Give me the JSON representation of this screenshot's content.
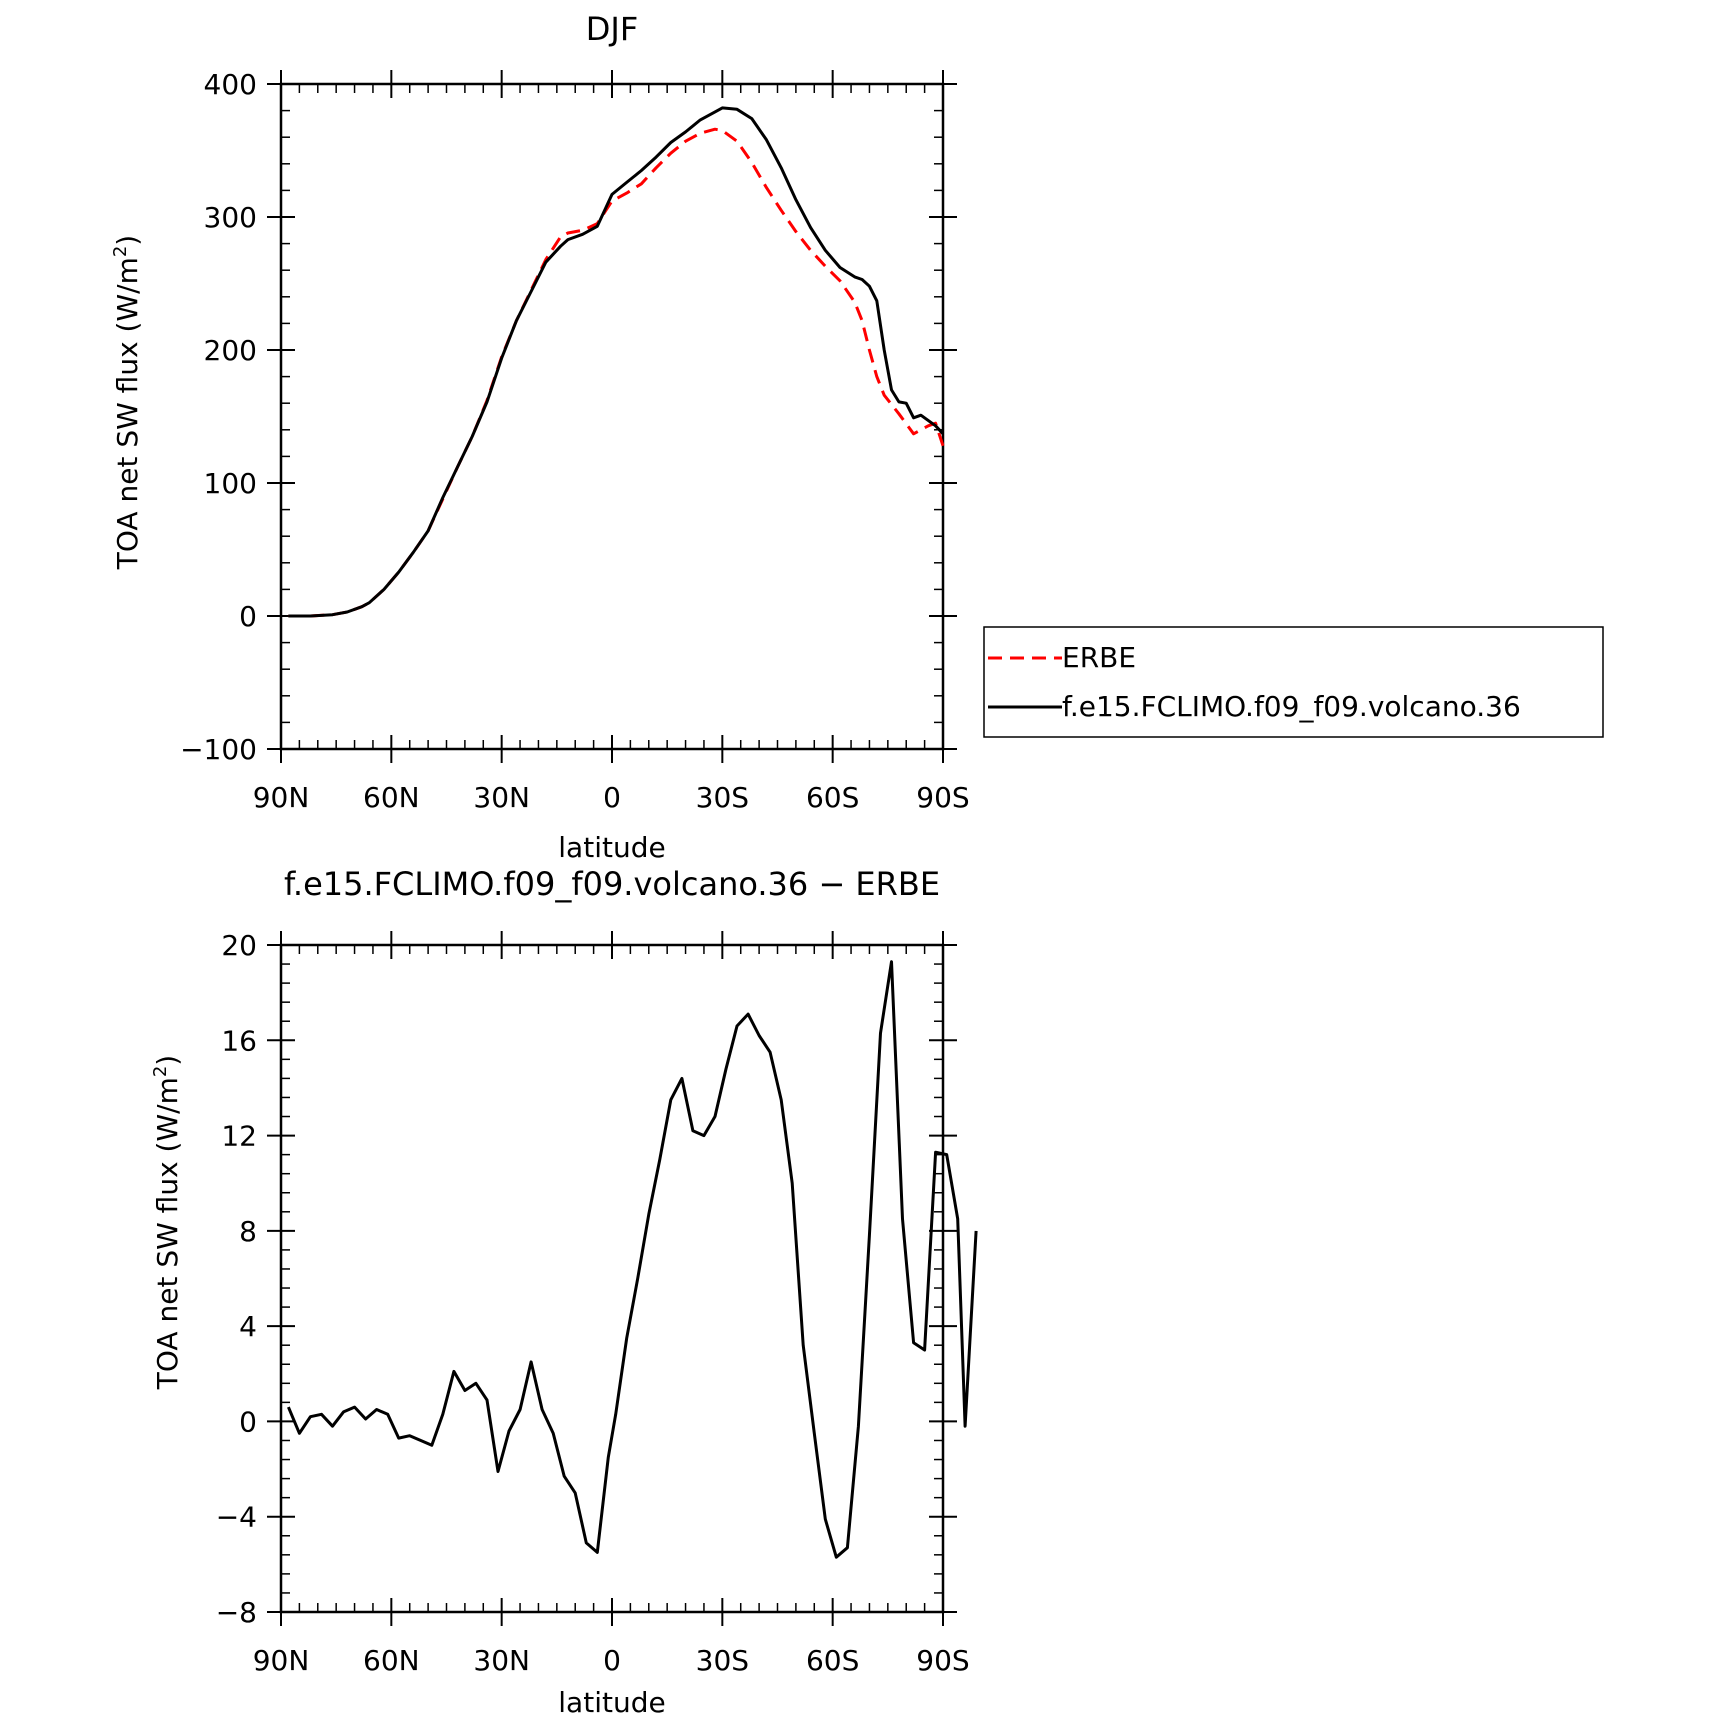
{
  "chart_data": [
    {
      "type": "line",
      "title": "DJF",
      "xlabel": "latitude",
      "ylabel": "TOA net SW flux (W/m²)",
      "ylabel_parts": {
        "main": "TOA net SW flux (W/m",
        "sup": "2",
        "end": ")"
      },
      "xlim": [
        90,
        -90
      ],
      "ylim": [
        -100,
        400
      ],
      "x_ticks": [
        {
          "value": 90,
          "label": "90N"
        },
        {
          "value": 60,
          "label": "60N"
        },
        {
          "value": 30,
          "label": "30N"
        },
        {
          "value": 0,
          "label": "0"
        },
        {
          "value": -30,
          "label": "30S"
        },
        {
          "value": -60,
          "label": "60S"
        },
        {
          "value": -90,
          "label": "90S"
        }
      ],
      "y_ticks": [
        {
          "value": -100,
          "label": "−100"
        },
        {
          "value": 0,
          "label": "0"
        },
        {
          "value": 100,
          "label": "100"
        },
        {
          "value": 200,
          "label": "200"
        },
        {
          "value": 300,
          "label": "300"
        },
        {
          "value": 400,
          "label": "400"
        }
      ],
      "legend_position": "right",
      "series": [
        {
          "name": "ERBE",
          "color": "#ff0000",
          "dash": "dashed",
          "points": [
            [
              88,
              0
            ],
            [
              82,
              0
            ],
            [
              76,
              1
            ],
            [
              72,
              3
            ],
            [
              68,
              7
            ],
            [
              66,
              10
            ],
            [
              62,
              20
            ],
            [
              58,
              33
            ],
            [
              54,
              48
            ],
            [
              50,
              64
            ],
            [
              46,
              88
            ],
            [
              42,
              112
            ],
            [
              38,
              135
            ],
            [
              34,
              162
            ],
            [
              30,
              195
            ],
            [
              26,
              222
            ],
            [
              22,
              245
            ],
            [
              18,
              268
            ],
            [
              14,
              285
            ],
            [
              12,
              288
            ],
            [
              8,
              290
            ],
            [
              4,
              295
            ],
            [
              0,
              312
            ],
            [
              -4,
              318
            ],
            [
              -8,
              325
            ],
            [
              -12,
              337
            ],
            [
              -16,
              348
            ],
            [
              -20,
              357
            ],
            [
              -24,
              363
            ],
            [
              -28,
              366
            ],
            [
              -30,
              365
            ],
            [
              -34,
              357
            ],
            [
              -38,
              341
            ],
            [
              -42,
              322
            ],
            [
              -46,
              305
            ],
            [
              -50,
              289
            ],
            [
              -54,
              275
            ],
            [
              -58,
              263
            ],
            [
              -62,
              252
            ],
            [
              -66,
              236
            ],
            [
              -68,
              222
            ],
            [
              -70,
              200
            ],
            [
              -72,
              180
            ],
            [
              -74,
              166
            ],
            [
              -78,
              152
            ],
            [
              -82,
              137
            ],
            [
              -86,
              143
            ],
            [
              -88,
              145
            ],
            [
              -90,
              128
            ]
          ]
        },
        {
          "name": "f.e15.FCLIMO.f09_f09.volcano.36",
          "color": "#000000",
          "dash": "solid",
          "points": [
            [
              88,
              0
            ],
            [
              82,
              0
            ],
            [
              76,
              1
            ],
            [
              72,
              3
            ],
            [
              68,
              7
            ],
            [
              66,
              10
            ],
            [
              62,
              20
            ],
            [
              58,
              33
            ],
            [
              54,
              48
            ],
            [
              50,
              64
            ],
            [
              46,
              89
            ],
            [
              42,
              112
            ],
            [
              38,
              135
            ],
            [
              34,
              161
            ],
            [
              30,
              194
            ],
            [
              26,
              222
            ],
            [
              22,
              244
            ],
            [
              18,
              266
            ],
            [
              14,
              278
            ],
            [
              12,
              283
            ],
            [
              8,
              287
            ],
            [
              4,
              293
            ],
            [
              0,
              317
            ],
            [
              -4,
              326
            ],
            [
              -8,
              335
            ],
            [
              -12,
              345
            ],
            [
              -16,
              356
            ],
            [
              -20,
              364
            ],
            [
              -24,
              373
            ],
            [
              -28,
              379
            ],
            [
              -30,
              382
            ],
            [
              -34,
              381
            ],
            [
              -38,
              374
            ],
            [
              -42,
              358
            ],
            [
              -46,
              337
            ],
            [
              -50,
              313
            ],
            [
              -54,
              292
            ],
            [
              -58,
              275
            ],
            [
              -62,
              262
            ],
            [
              -66,
              255
            ],
            [
              -68,
              253
            ],
            [
              -70,
              248
            ],
            [
              -72,
              237
            ],
            [
              -74,
              200
            ],
            [
              -76,
              170
            ],
            [
              -78,
              161
            ],
            [
              -80,
              160
            ],
            [
              -82,
              149
            ],
            [
              -84,
              151
            ],
            [
              -88,
              143
            ],
            [
              -90,
              137
            ]
          ]
        }
      ]
    },
    {
      "type": "line",
      "title": "f.e15.FCLIMO.f09_f09.volcano.36 − ERBE",
      "xlabel": "latitude",
      "ylabel": "TOA net SW flux (W/m²)",
      "ylabel_parts": {
        "main": "TOA net SW flux (W/m",
        "sup": "2",
        "end": ")"
      },
      "xlim": [
        90,
        -90
      ],
      "ylim": [
        -8,
        20
      ],
      "x_ticks": [
        {
          "value": 90,
          "label": "90N"
        },
        {
          "value": 60,
          "label": "60N"
        },
        {
          "value": 30,
          "label": "30N"
        },
        {
          "value": 0,
          "label": "0"
        },
        {
          "value": -30,
          "label": "30S"
        },
        {
          "value": -60,
          "label": "60S"
        },
        {
          "value": -90,
          "label": "90S"
        }
      ],
      "y_ticks": [
        {
          "value": -8,
          "label": "−8"
        },
        {
          "value": -4,
          "label": "−4"
        },
        {
          "value": 0,
          "label": "0"
        },
        {
          "value": 4,
          "label": "4"
        },
        {
          "value": 8,
          "label": "8"
        },
        {
          "value": 12,
          "label": "12"
        },
        {
          "value": 16,
          "label": "16"
        },
        {
          "value": 20,
          "label": "20"
        }
      ],
      "series": [
        {
          "color": "#000000",
          "dash": "solid",
          "points": [
            [
              88,
              0.6
            ],
            [
              85,
              -0.5
            ],
            [
              82,
              0.2
            ],
            [
              79,
              0.3
            ],
            [
              76,
              -0.2
            ],
            [
              73,
              0.4
            ],
            [
              70,
              0.6
            ],
            [
              67,
              0.1
            ],
            [
              64,
              0.5
            ],
            [
              61,
              0.3
            ],
            [
              58,
              -0.7
            ],
            [
              55,
              -0.6
            ],
            [
              52,
              -0.8
            ],
            [
              49,
              -1.0
            ],
            [
              46,
              0.3
            ],
            [
              43,
              2.1
            ],
            [
              40,
              1.3
            ],
            [
              37,
              1.6
            ],
            [
              34,
              0.9
            ],
            [
              31,
              -2.1
            ],
            [
              28,
              -0.4
            ],
            [
              25,
              0.5
            ],
            [
              22,
              2.5
            ],
            [
              19,
              0.5
            ],
            [
              16,
              -0.5
            ],
            [
              13,
              -2.3
            ],
            [
              10,
              -3.0
            ],
            [
              7,
              -5.1
            ],
            [
              4,
              -5.5
            ],
            [
              1,
              -1.5
            ],
            [
              -1,
              0.3
            ],
            [
              -4,
              3.5
            ],
            [
              -7,
              6.0
            ],
            [
              -10,
              8.7
            ],
            [
              -13,
              11.0
            ],
            [
              -16,
              13.5
            ],
            [
              -19,
              14.4
            ],
            [
              -22,
              12.2
            ],
            [
              -25,
              12.0
            ],
            [
              -28,
              12.8
            ],
            [
              -31,
              14.8
            ],
            [
              -34,
              16.6
            ],
            [
              -37,
              17.1
            ],
            [
              -40,
              16.2
            ],
            [
              -43,
              15.5
            ],
            [
              -46,
              13.5
            ],
            [
              -49,
              10.0
            ],
            [
              -52,
              3.2
            ],
            [
              -55,
              -0.5
            ],
            [
              -58,
              -4.1
            ],
            [
              -61,
              -5.7
            ],
            [
              -64,
              -5.3
            ],
            [
              -67,
              -0.2
            ],
            [
              -70,
              7.8
            ],
            [
              -73,
              16.3
            ],
            [
              -76,
              19.3
            ],
            [
              -79,
              8.5
            ],
            [
              -82,
              3.3
            ],
            [
              -85,
              3.0
            ],
            [
              -88,
              11.3
            ],
            [
              -91,
              11.2
            ],
            [
              -94,
              8.5
            ],
            [
              -96,
              -0.2
            ],
            [
              -99,
              8.0
            ]
          ]
        }
      ]
    }
  ]
}
